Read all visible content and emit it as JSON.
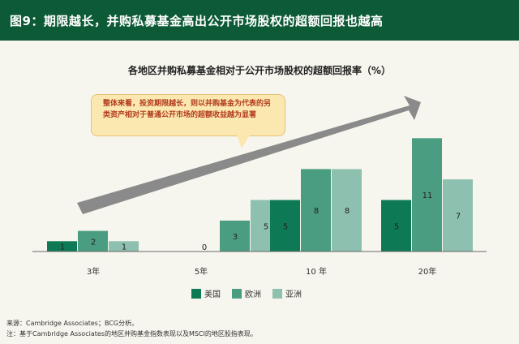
{
  "header": {
    "title": "图9：期限越长，并购私募基金高出公开市场股权的超额回报也越高"
  },
  "callout": {
    "text": "整体来看，投资期限越长，则以并购基金为代表的另类资产相对于普通公开市场的超额收益越为显著"
  },
  "footer": {
    "source": "来源：Cambridge Associates；BCG分析。",
    "note": "注：基于Cambridge Associates的地区并购基金指数表现以及MSCI的地区股指表现。"
  },
  "colors": {
    "header_bg": "#0d5b36",
    "usa": "#0d7a55",
    "europe": "#4b9d82",
    "asia": "#8ec0b0",
    "arrow": "#8a8a8a"
  },
  "chart_data": {
    "type": "bar",
    "title": "各地区并购私募基金相对于公开市场股权的超额回报率（%）",
    "categories": [
      "3年",
      "5年",
      "10 年",
      "20年"
    ],
    "series": [
      {
        "name": "美国",
        "values": [
          1,
          0,
          5,
          5
        ]
      },
      {
        "name": "欧洲",
        "values": [
          2,
          3,
          8,
          11
        ]
      },
      {
        "name": "亚洲",
        "values": [
          1,
          5,
          8,
          7
        ]
      }
    ],
    "data_labels": [
      [
        "1",
        "0",
        "5",
        "5"
      ],
      [
        "2",
        "3",
        "8",
        "11"
      ],
      [
        "1",
        "5",
        "8",
        "7"
      ]
    ],
    "ylim": [
      0,
      12
    ],
    "grid": false,
    "legend_position": "bottom"
  }
}
